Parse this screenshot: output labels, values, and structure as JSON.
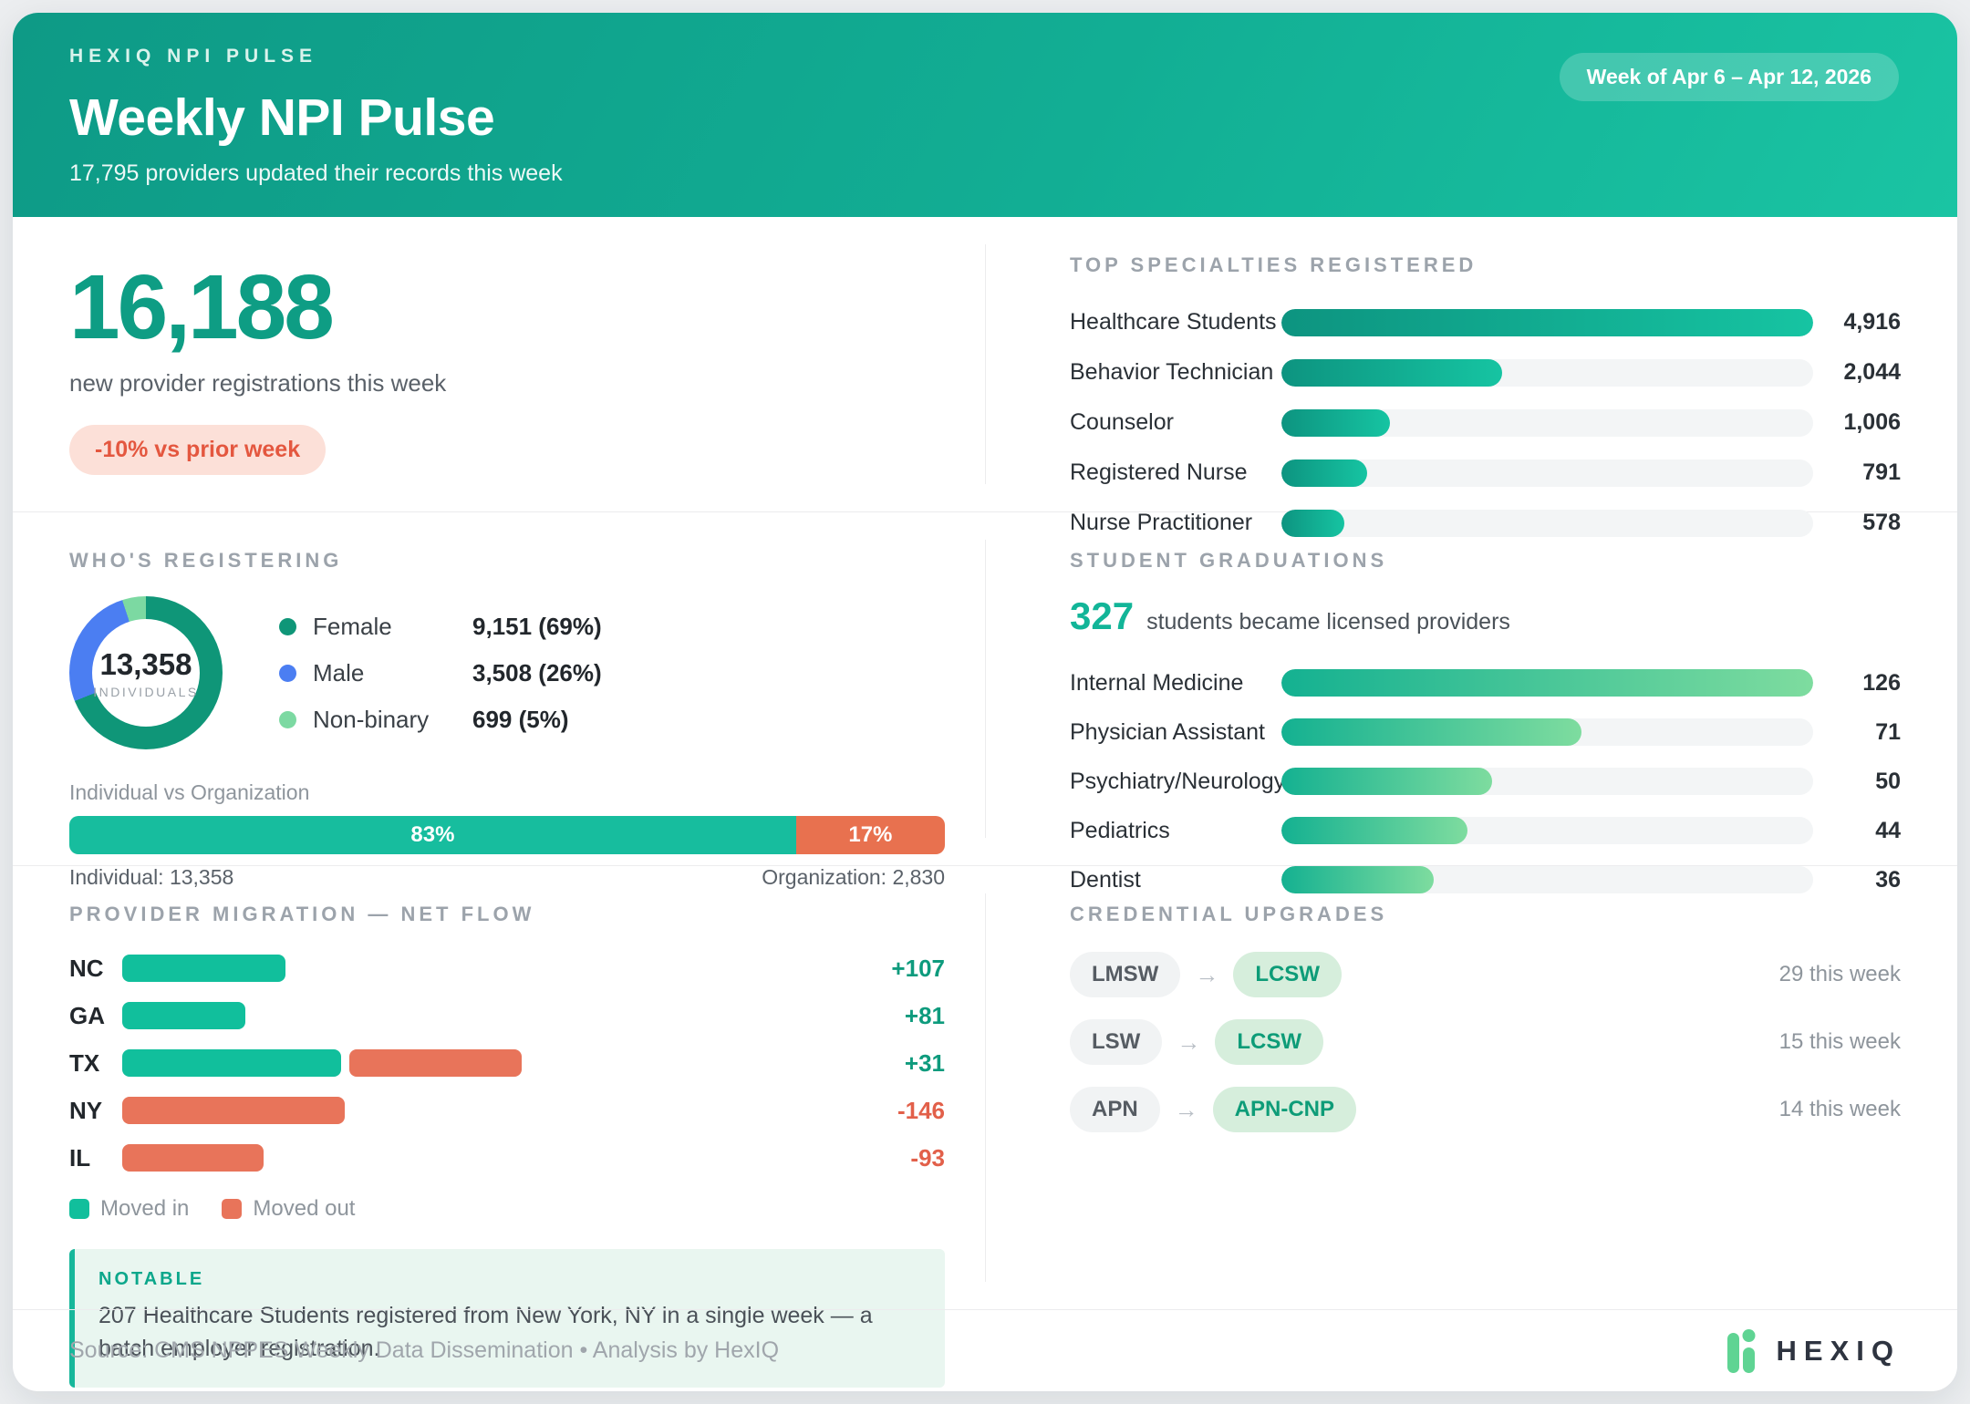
{
  "colors": {
    "accent_teal": "#0E9D84",
    "bright_teal": "#17BD9E",
    "negative_red": "#E8714F",
    "male_blue": "#4B7EF2",
    "nonbinary_green": "#7CD9A2",
    "female_green": "#0F9678"
  },
  "header": {
    "eyebrow": "HEXIQ NPI PULSE",
    "title": "Weekly NPI Pulse",
    "subtitle": "17,795 providers updated their records this week",
    "week_pill": "Week of Apr 6 – Apr 12, 2026"
  },
  "stat": {
    "value": "16,188",
    "caption": "new provider registrations this week",
    "badge": "-10% vs prior week"
  },
  "specialties": {
    "title": "TOP SPECIALTIES REGISTERED",
    "max_value": 4916,
    "rows": [
      {
        "label": "Healthcare Students",
        "value": 4916,
        "display": "4,916"
      },
      {
        "label": "Behavior Technician",
        "value": 2044,
        "display": "2,044"
      },
      {
        "label": "Counselor",
        "value": 1006,
        "display": "1,006"
      },
      {
        "label": "Registered Nurse",
        "value": 791,
        "display": "791"
      },
      {
        "label": "Nurse Practitioner",
        "value": 578,
        "display": "578"
      }
    ]
  },
  "who": {
    "title": "WHO'S REGISTERING",
    "donut": {
      "total": "13,358",
      "total_label": "INDIVIDUALS",
      "slices": [
        {
          "label": "Female",
          "display": "9,151 (69%)",
          "pct": 69,
          "color": "#0F9678"
        },
        {
          "label": "Male",
          "display": "3,508 (26%)",
          "pct": 26,
          "color": "#4B7EF2"
        },
        {
          "label": "Non-binary",
          "display": "699 (5%)",
          "pct": 5,
          "color": "#7CD9A2"
        }
      ]
    },
    "ind_org": {
      "label": "Individual vs Organization",
      "individual_pct": 83,
      "organization_pct": 17,
      "individual_pct_label": "83%",
      "organization_pct_label": "17%",
      "individual_caption": "Individual: 13,358",
      "organization_caption": "Organization: 2,830"
    }
  },
  "graduations": {
    "title": "STUDENT GRADUATIONS",
    "headline_value": "327",
    "headline_text": "students became licensed providers",
    "max_value": 126,
    "rows": [
      {
        "label": "Internal Medicine",
        "value": 126,
        "display": "126"
      },
      {
        "label": "Physician Assistant",
        "value": 71,
        "display": "71"
      },
      {
        "label": "Psychiatry/Neurology",
        "value": 50,
        "display": "50"
      },
      {
        "label": "Pediatrics",
        "value": 44,
        "display": "44"
      },
      {
        "label": "Dentist",
        "value": 36,
        "display": "36"
      }
    ]
  },
  "migration": {
    "title": "PROVIDER MIGRATION — NET FLOW",
    "rows": [
      {
        "state": "NC",
        "moved_in": 107,
        "moved_out": 0,
        "net": "+107"
      },
      {
        "state": "GA",
        "moved_in": 81,
        "moved_out": 0,
        "net": "+81"
      },
      {
        "state": "TX",
        "moved_in": 144,
        "moved_out": 113,
        "net": "+31"
      },
      {
        "state": "NY",
        "moved_in": 0,
        "moved_out": 146,
        "net": "-146"
      },
      {
        "state": "IL",
        "moved_in": 0,
        "moved_out": 93,
        "net": "-93"
      }
    ],
    "legend": {
      "in": "Moved in",
      "out": "Moved out"
    }
  },
  "notable": {
    "title": "NOTABLE",
    "text": "207 Healthcare Students registered from New York, NY in a single week — a batch employer registration."
  },
  "credentials": {
    "title": "CREDENTIAL UPGRADES",
    "arrow": "→",
    "rows": [
      {
        "from": "LMSW",
        "to": "LCSW",
        "count": "29 this week"
      },
      {
        "from": "LSW",
        "to": "LCSW",
        "count": "15 this week"
      },
      {
        "from": "APN",
        "to": "APN-CNP",
        "count": "14 this week"
      }
    ]
  },
  "footer": {
    "source": "Source: CMS NPPES Weekly Data Dissemination • Analysis by HexIQ",
    "brand": "HEXIQ"
  },
  "chart_data": [
    {
      "type": "bar",
      "title": "TOP SPECIALTIES REGISTERED",
      "categories": [
        "Healthcare Students",
        "Behavior Technician",
        "Counselor",
        "Registered Nurse",
        "Nurse Practitioner"
      ],
      "values": [
        4916,
        2044,
        1006,
        791,
        578
      ],
      "xlabel": "",
      "ylabel": "",
      "orientation": "horizontal",
      "xlim": [
        0,
        4916
      ],
      "grid": false
    },
    {
      "type": "pie",
      "title": "WHO'S REGISTERING",
      "categories": [
        "Female",
        "Male",
        "Non-binary"
      ],
      "values": [
        9151,
        3508,
        699
      ],
      "percentages": [
        69,
        26,
        5
      ],
      "center_total": 13358,
      "donut": true,
      "legend_position": "right"
    },
    {
      "type": "bar",
      "title": "Individual vs Organization",
      "categories": [
        "Individual",
        "Organization"
      ],
      "values": [
        13358,
        2830
      ],
      "percentages": [
        83,
        17
      ],
      "stacked": true,
      "orientation": "horizontal"
    },
    {
      "type": "bar",
      "title": "STUDENT GRADUATIONS (327 total)",
      "categories": [
        "Internal Medicine",
        "Physician Assistant",
        "Psychiatry/Neurology",
        "Pediatrics",
        "Dentist"
      ],
      "values": [
        126,
        71,
        50,
        44,
        36
      ],
      "orientation": "horizontal",
      "xlim": [
        0,
        126
      ],
      "grid": false
    },
    {
      "type": "bar",
      "title": "PROVIDER MIGRATION — NET FLOW",
      "categories": [
        "NC",
        "GA",
        "TX",
        "NY",
        "IL"
      ],
      "series": [
        {
          "name": "Moved in",
          "values": [
            107,
            81,
            144,
            0,
            0
          ]
        },
        {
          "name": "Moved out",
          "values": [
            0,
            0,
            113,
            146,
            93
          ]
        }
      ],
      "net_values": [
        107,
        81,
        31,
        -146,
        -93
      ],
      "orientation": "horizontal",
      "legend_position": "bottom"
    }
  ]
}
